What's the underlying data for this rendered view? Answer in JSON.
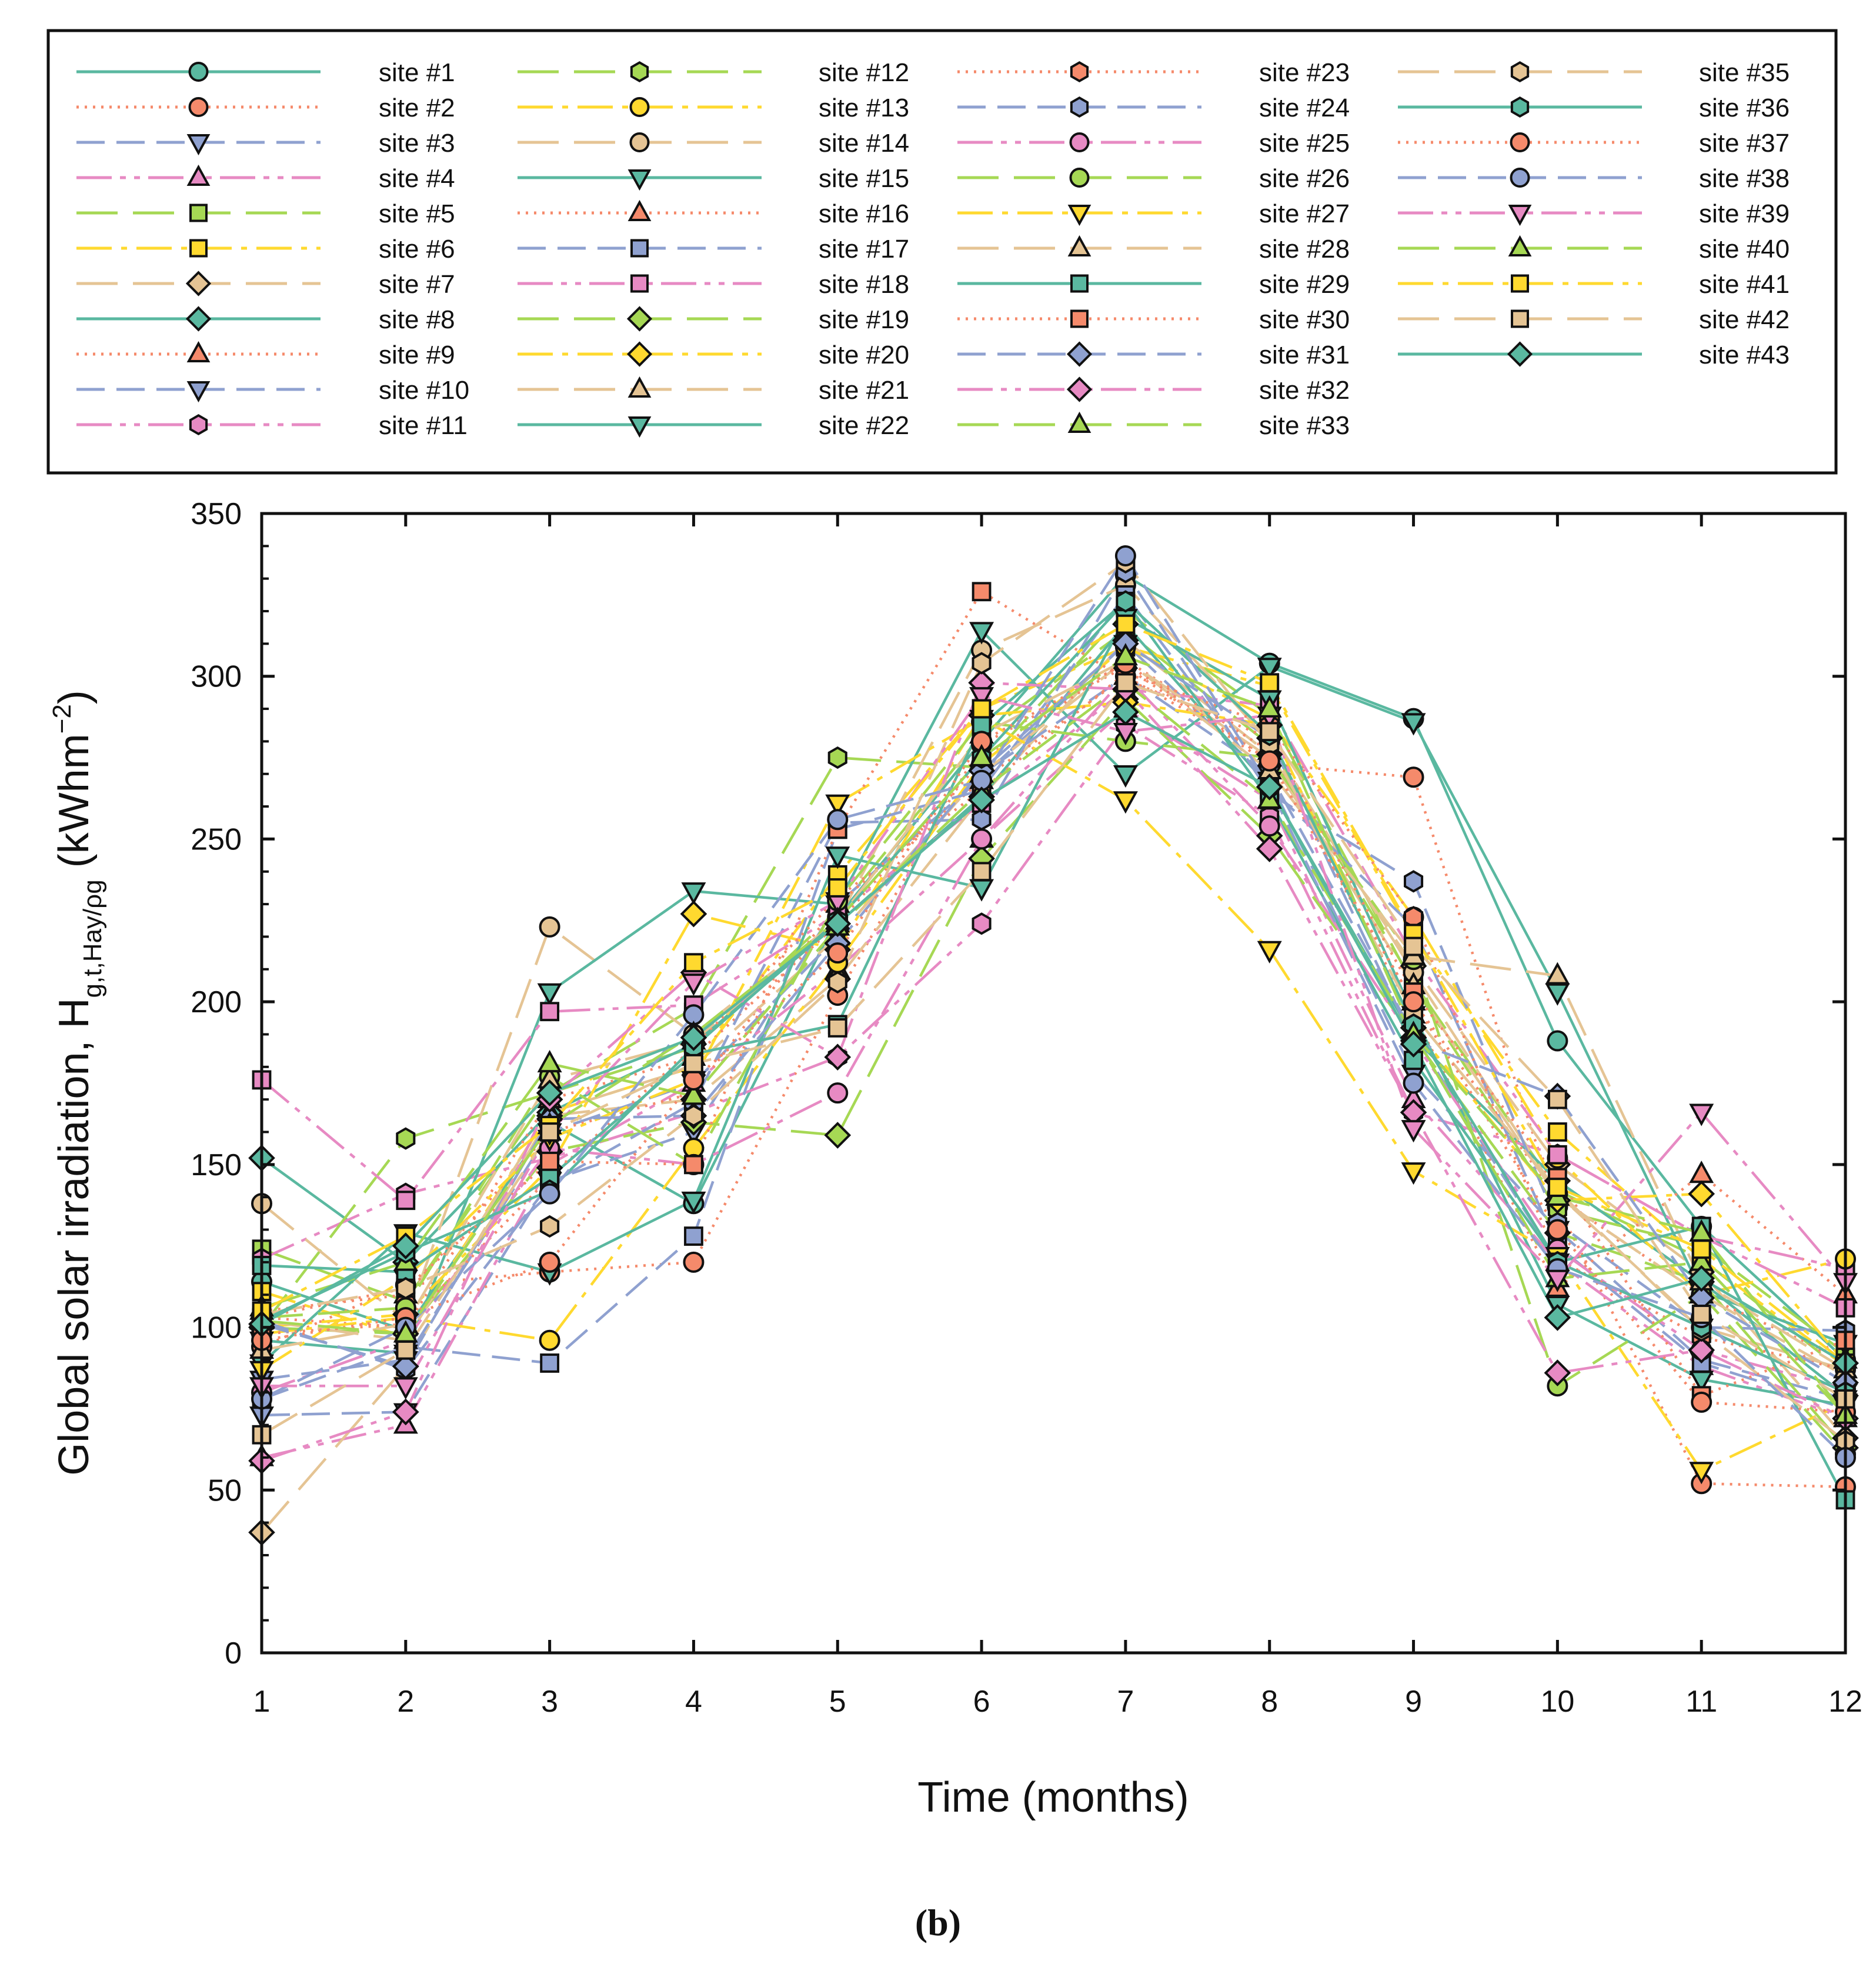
{
  "chart_data": {
    "type": "line",
    "title": "",
    "caption": "(b)",
    "xlabel": "Time (months)",
    "ylabel": {
      "main": "Global solar irradiation, H",
      "subscript": "g,t,Hay/ρg",
      "unit_open": " (kWhm",
      "unit_exp": "−2",
      "unit_close": ")"
    },
    "x": [
      1,
      2,
      3,
      4,
      5,
      6,
      7,
      8,
      9,
      10,
      11,
      12
    ],
    "xlim": [
      1,
      12
    ],
    "ylim": [
      0,
      350
    ],
    "xticks": [
      "1",
      "2",
      "3",
      "4",
      "5",
      "6",
      "7",
      "8",
      "9",
      "10",
      "11",
      "12"
    ],
    "yticks": [
      "0",
      "50",
      "100",
      "150",
      "200",
      "250",
      "300",
      "350"
    ],
    "grid": false,
    "legend_position": "top",
    "series": [
      {
        "name": "site #1",
        "color": "#5ab8a0",
        "dash": "solid",
        "marker": "circle",
        "values": [
          114,
          99,
          163,
          138,
          226,
          280,
          331,
          304,
          287,
          188,
          131,
          90
        ]
      },
      {
        "name": "site #2",
        "color": "#f58a6b",
        "dash": "dotted",
        "marker": "circle",
        "values": [
          94,
          113,
          117,
          120,
          202,
          279,
          303,
          273,
          269,
          137,
          52,
          51
        ]
      },
      {
        "name": "site #3",
        "color": "#8fa1d0",
        "dash": "dashed",
        "marker": "triangle-down",
        "values": [
          73,
          74,
          145,
          160,
          230,
          269,
          310,
          268,
          178,
          130,
          90,
          78
        ]
      },
      {
        "name": "site #4",
        "color": "#e78ac3",
        "dash": "dashdotdot",
        "marker": "triangle-up",
        "values": [
          60,
          70,
          150,
          175,
          210,
          250,
          290,
          262,
          170,
          120,
          88,
          72
        ]
      },
      {
        "name": "site #5",
        "color": "#a6d854",
        "dash": "longdash",
        "marker": "square",
        "values": [
          124,
          108,
          172,
          186,
          228,
          282,
          314,
          279,
          206,
          142,
          121,
          86
        ]
      },
      {
        "name": "site #6",
        "color": "#ffd92f",
        "dash": "dashdot",
        "marker": "square",
        "values": [
          111,
          97,
          166,
          180,
          239,
          290,
          309,
          297,
          220,
          160,
          121,
          88
        ]
      },
      {
        "name": "site #7",
        "color": "#e5c494",
        "dash": "longdash",
        "marker": "diamond",
        "values": [
          37,
          88,
          165,
          170,
          207,
          263,
          311,
          276,
          211,
          150,
          117,
          66
        ]
      },
      {
        "name": "site #8",
        "color": "#5ab8a0",
        "dash": "solid",
        "marker": "diamond",
        "values": [
          152,
          120,
          166,
          187,
          224,
          263,
          316,
          266,
          189,
          145,
          114,
          79
        ]
      },
      {
        "name": "site #9",
        "color": "#f58a6b",
        "dash": "dotted",
        "marker": "triangle-up",
        "values": [
          103,
          100,
          170,
          183,
          224,
          274,
          305,
          277,
          196,
          112,
          147,
          110
        ]
      },
      {
        "name": "site #10",
        "color": "#8fa1d0",
        "dash": "dashed",
        "marker": "triangle-down",
        "values": [
          84,
          90,
          160,
          175,
          220,
          270,
          300,
          270,
          190,
          120,
          100,
          80
        ]
      },
      {
        "name": "site #11",
        "color": "#e78ac3",
        "dash": "dashdotdot",
        "marker": "hexagon",
        "values": [
          121,
          141,
          152,
          166,
          183,
          224,
          285,
          257,
          166,
          153,
          128,
          118
        ]
      },
      {
        "name": "site #12",
        "color": "#a6d854",
        "dash": "longdash",
        "marker": "hexagon",
        "values": [
          100,
          158,
          172,
          198,
          275,
          272,
          320,
          288,
          205,
          136,
          125,
          92
        ]
      },
      {
        "name": "site #13",
        "color": "#ffd92f",
        "dash": "dashdot",
        "marker": "circle",
        "values": [
          98,
          103,
          96,
          155,
          212,
          273,
          309,
          287,
          226,
          152,
          110,
          121
        ]
      },
      {
        "name": "site #14",
        "color": "#e5c494",
        "dash": "longdash",
        "marker": "circle",
        "values": [
          138,
          102,
          223,
          190,
          225,
          308,
          328,
          280,
          209,
          141,
          100,
          87
        ]
      },
      {
        "name": "site #15",
        "color": "#5ab8a0",
        "dash": "solid",
        "marker": "triangle-down",
        "values": [
          96,
          92,
          203,
          234,
          230,
          314,
          270,
          303,
          286,
          203,
          111,
          95
        ]
      },
      {
        "name": "site #16",
        "color": "#f58a6b",
        "dash": "dotted",
        "marker": "triangle-up",
        "values": [
          105,
          110,
          160,
          172,
          230,
          268,
          300,
          275,
          200,
          140,
          110,
          90
        ]
      },
      {
        "name": "site #17",
        "color": "#8fa1d0",
        "dash": "dashed",
        "marker": "square",
        "values": [
          78,
          94,
          89,
          128,
          253,
          265,
          325,
          266,
          223,
          125,
          89,
          75
        ]
      },
      {
        "name": "site #18",
        "color": "#e78ac3",
        "dash": "dashdotdot",
        "marker": "square",
        "values": [
          176,
          139,
          197,
          199,
          227,
          261,
          296,
          291,
          214,
          153,
          128,
          106
        ]
      },
      {
        "name": "site #19",
        "color": "#a6d854",
        "dash": "longdash",
        "marker": "diamond",
        "values": [
          100,
          98,
          154,
          163,
          159,
          244,
          293,
          251,
          189,
          129,
          114,
          63
        ]
      },
      {
        "name": "site #20",
        "color": "#ffd92f",
        "dash": "dashdot",
        "marker": "diamond",
        "values": [
          100,
          104,
          149,
          227,
          216,
          288,
          292,
          285,
          192,
          139,
          141,
          89
        ]
      },
      {
        "name": "site #21",
        "color": "#e5c494",
        "dash": "longdash",
        "marker": "triangle-up",
        "values": [
          102,
          96,
          166,
          180,
          220,
          270,
          305,
          275,
          205,
          140,
          110,
          85
        ]
      },
      {
        "name": "site #22",
        "color": "#5ab8a0",
        "dash": "solid",
        "marker": "triangle-down",
        "values": [
          89,
          129,
          117,
          139,
          245,
          235,
          318,
          293,
          196,
          107,
          84,
          76
        ]
      },
      {
        "name": "site #23",
        "color": "#f58a6b",
        "dash": "dotted",
        "marker": "hexagon",
        "values": [
          98,
          101,
          146,
          186,
          232,
          265,
          301,
          285,
          226,
          121,
          97,
          87
        ]
      },
      {
        "name": "site #24",
        "color": "#8fa1d0",
        "dash": "dashed",
        "marker": "hexagon",
        "values": [
          102,
          87,
          144,
          169,
          255,
          256,
          332,
          264,
          237,
          132,
          100,
          99
        ]
      },
      {
        "name": "site #25",
        "color": "#e78ac3",
        "dash": "dashdotdot",
        "marker": "circle",
        "values": [
          80,
          96,
          155,
          150,
          172,
          250,
          300,
          254,
          188,
          124,
          93,
          81
        ]
      },
      {
        "name": "site #26",
        "color": "#a6d854",
        "dash": "longdash",
        "marker": "circle",
        "values": [
          103,
          106,
          177,
          150,
          231,
          286,
          280,
          275,
          213,
          82,
          110,
          61
        ]
      },
      {
        "name": "site #27",
        "color": "#ffd92f",
        "dash": "dashdot",
        "marker": "triangle-down",
        "values": [
          87,
          115,
          158,
          176,
          261,
          287,
          262,
          216,
          148,
          122,
          56,
          77
        ]
      },
      {
        "name": "site #28",
        "color": "#e5c494",
        "dash": "longdash",
        "marker": "triangle-up",
        "values": [
          93,
          101,
          176,
          188,
          225,
          282,
          305,
          271,
          214,
          208,
          114,
          87
        ]
      },
      {
        "name": "site #29",
        "color": "#5ab8a0",
        "dash": "solid",
        "marker": "square",
        "values": [
          119,
          117,
          146,
          184,
          193,
          285,
          323,
          262,
          182,
          120,
          131,
          47
        ]
      },
      {
        "name": "site #30",
        "color": "#f58a6b",
        "dash": "dotted",
        "marker": "square",
        "values": [
          103,
          112,
          151,
          150,
          253,
          326,
          299,
          281,
          203,
          146,
          79,
          96
        ]
      },
      {
        "name": "site #31",
        "color": "#8fa1d0",
        "dash": "dashed",
        "marker": "diamond",
        "values": [
          101,
          88,
          164,
          165,
          218,
          271,
          310,
          281,
          188,
          171,
          109,
          83
        ]
      },
      {
        "name": "site #32",
        "color": "#e78ac3",
        "dash": "dashdotdot",
        "marker": "diamond",
        "values": [
          59,
          74,
          170,
          209,
          183,
          298,
          296,
          247,
          166,
          86,
          93,
          72
        ]
      },
      {
        "name": "site #33",
        "color": "#a6d854",
        "dash": "longdash",
        "marker": "triangle-up",
        "values": [
          106,
          120,
          181,
          171,
          223,
          265,
          298,
          262,
          190,
          115,
          120,
          73
        ]
      },
      {
        "name": "site #35",
        "color": "#e5c494",
        "dash": "longdash",
        "marker": "hexagon",
        "values": [
          104,
          112,
          131,
          165,
          206,
          304,
          335,
          279,
          196,
          142,
          99,
          65
        ]
      },
      {
        "name": "site #36",
        "color": "#5ab8a0",
        "dash": "solid",
        "marker": "hexagon",
        "values": [
          102,
          123,
          142,
          186,
          225,
          275,
          323,
          282,
          193,
          120,
          100,
          80
        ]
      },
      {
        "name": "site #37",
        "color": "#f58a6b",
        "dash": "dotted",
        "marker": "circle",
        "values": [
          96,
          103,
          120,
          176,
          215,
          280,
          304,
          274,
          200,
          130,
          77,
          74
        ]
      },
      {
        "name": "site #38",
        "color": "#8fa1d0",
        "dash": "dashed",
        "marker": "circle",
        "values": [
          78,
          100,
          141,
          196,
          256,
          268,
          337,
          266,
          175,
          118,
          103,
          60
        ]
      },
      {
        "name": "site #39",
        "color": "#e78ac3",
        "dash": "dashdotdot",
        "marker": "triangle-down",
        "values": [
          82,
          82,
          160,
          206,
          231,
          294,
          283,
          288,
          161,
          115,
          166,
          114
        ]
      },
      {
        "name": "site #40",
        "color": "#a6d854",
        "dash": "longdash",
        "marker": "triangle-up",
        "values": [
          102,
          98,
          162,
          190,
          225,
          275,
          306,
          290,
          190,
          140,
          129,
          73
        ]
      },
      {
        "name": "site #41",
        "color": "#ffd92f",
        "dash": "dashdot",
        "marker": "square",
        "values": [
          105,
          128,
          162,
          212,
          235,
          290,
          316,
          298,
          221,
          143,
          124,
          89
        ]
      },
      {
        "name": "site #42",
        "color": "#e5c494",
        "dash": "longdash",
        "marker": "square",
        "values": [
          67,
          93,
          160,
          181,
          192,
          240,
          298,
          283,
          217,
          170,
          104,
          78
        ]
      },
      {
        "name": "site #43",
        "color": "#5ab8a0",
        "dash": "solid",
        "marker": "diamond",
        "values": [
          101,
          125,
          172,
          189,
          224,
          262,
          289,
          266,
          187,
          103,
          115,
          89
        ]
      }
    ]
  }
}
